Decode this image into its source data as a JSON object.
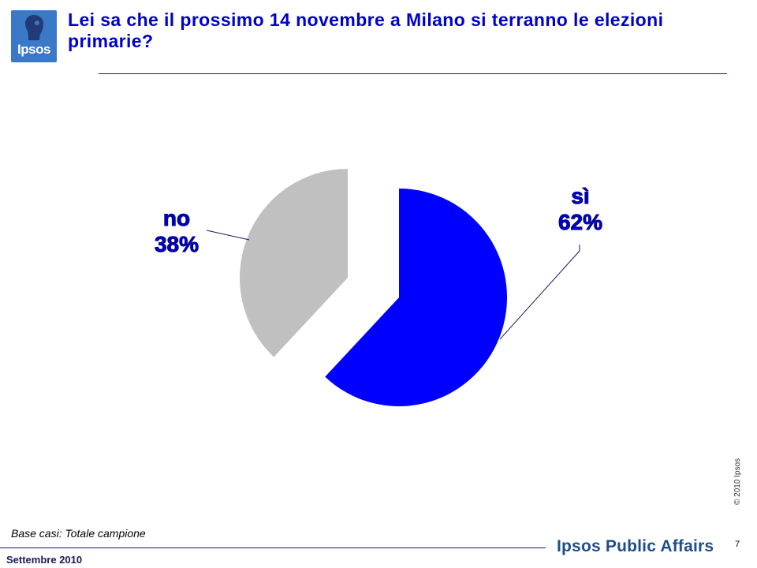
{
  "header": {
    "logo_text": "Ipsos",
    "title": "Lei sa che il prossimo 14 novembre a Milano si terranno le elezioni primarie?"
  },
  "chart_data": {
    "type": "pie",
    "title": "",
    "slices": [
      {
        "label": "sì",
        "value": 62,
        "display": "62%",
        "color": "#0000ff",
        "exploded": false
      },
      {
        "label": "no",
        "value": 38,
        "display": "38%",
        "color": "#c0c0c0",
        "exploded": true
      }
    ]
  },
  "labels": {
    "si_name": "sì",
    "si_value": "62%",
    "no_name": "no",
    "no_value": "38%"
  },
  "footer": {
    "base": "Base casi: Totale campione",
    "date": "Settembre 2010",
    "brand": "Ipsos Public Affairs",
    "page_number": "7",
    "copyright": "© 2010 Ipsos"
  },
  "colors": {
    "title": "#0000cc",
    "slice_si": "#0000ff",
    "slice_no": "#c0c0c0",
    "logo_bg": "#3a78c8"
  }
}
